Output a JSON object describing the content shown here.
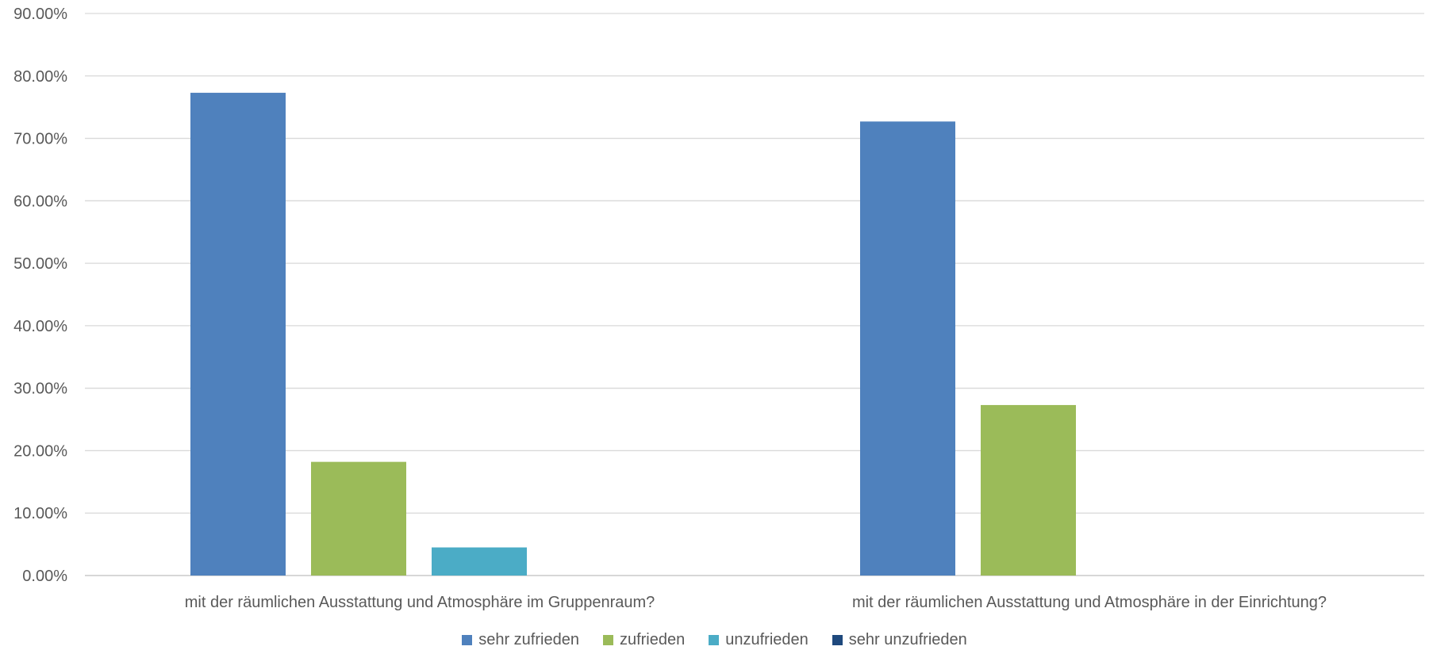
{
  "chart_data": {
    "type": "bar",
    "title": "",
    "xlabel": "",
    "ylabel": "",
    "ylim": [
      0,
      0.9
    ],
    "yticks": [
      "0.00%",
      "10.00%",
      "20.00%",
      "30.00%",
      "40.00%",
      "50.00%",
      "60.00%",
      "70.00%",
      "80.00%",
      "90.00%"
    ],
    "grid": true,
    "legend_position": "bottom",
    "categories": [
      "mit der räumlichen Ausstattung und Atmosphäre im Gruppenraum?",
      "mit der räumlichen Ausstattung und Atmosphäre in der Einrichtung?"
    ],
    "series": [
      {
        "name": "sehr zufrieden",
        "color": "#4F81BD",
        "values": [
          0.773,
          0.727
        ]
      },
      {
        "name": "zufrieden",
        "color": "#9BBB59",
        "values": [
          0.182,
          0.273
        ]
      },
      {
        "name": "unzufrieden",
        "color": "#4BACC6",
        "values": [
          0.045,
          0
        ]
      },
      {
        "name": "sehr unzufrieden",
        "color": "#1F497D",
        "values": [
          0,
          0
        ]
      }
    ]
  }
}
